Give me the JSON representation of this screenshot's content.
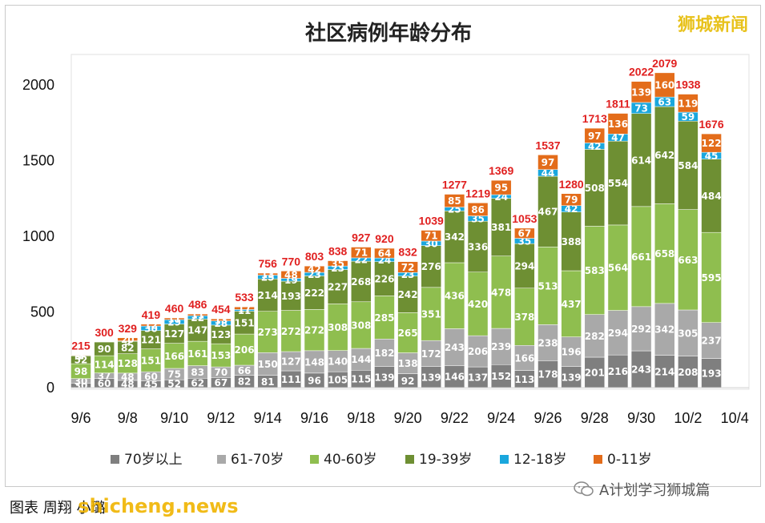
{
  "header": {
    "title": "社区病例年龄分布",
    "watermark": "狮城新闻"
  },
  "footer": {
    "caption": "图表  周翔 小璐",
    "site": "shicheng.news",
    "account": "A计划学习狮城篇",
    "account_icon": "wechat-icon"
  },
  "chart_data": {
    "type": "bar",
    "stacked": true,
    "title": "社区病例年龄分布",
    "ylim": [
      0,
      2200
    ],
    "yticks": [
      0,
      500,
      1000,
      1500,
      2000
    ],
    "xtick_labels": [
      "9/6",
      "9/8",
      "9/10",
      "9/12",
      "9/14",
      "9/16",
      "9/18",
      "9/20",
      "9/22",
      "9/24",
      "9/26",
      "9/28",
      "9/30",
      "10/2",
      "10/4"
    ],
    "grid": false,
    "legend_position": "bottom",
    "categories": [
      "9/6",
      "9/7",
      "9/8",
      "9/9",
      "9/10",
      "9/11",
      "9/12",
      "9/13",
      "9/14",
      "9/15",
      "9/16",
      "9/17",
      "9/18",
      "9/19",
      "9/20",
      "9/21",
      "9/22",
      "9/23",
      "9/24",
      "9/25",
      "9/26",
      "9/27",
      "9/28",
      "9/29",
      "9/30",
      "10/1",
      "10/2",
      "10/3"
    ],
    "totals": [
      215,
      300,
      329,
      419,
      460,
      486,
      454,
      533,
      756,
      770,
      803,
      838,
      927,
      920,
      832,
      1039,
      1277,
      1219,
      1369,
      1053,
      1537,
      1280,
      1713,
      1811,
      2022,
      2079,
      1938,
      1676
    ],
    "series": [
      {
        "name": "70岁以上",
        "color": "#7f7f7f",
        "values": [
          30,
          60,
          48,
          45,
          52,
          62,
          67,
          82,
          81,
          111,
          96,
          105,
          115,
          139,
          92,
          139,
          146,
          137,
          152,
          113,
          178,
          139,
          201,
          216,
          243,
          214,
          208,
          193
        ]
      },
      {
        "name": "61-70岁",
        "color": "#a9a9a9",
        "values": [
          30,
          37,
          48,
          60,
          75,
          83,
          70,
          66,
          150,
          127,
          148,
          140,
          144,
          182,
          138,
          172,
          243,
          206,
          239,
          166,
          238,
          196,
          282,
          294,
          292,
          342,
          305,
          237
        ]
      },
      {
        "name": "40-60岁",
        "color": "#8fbe4f",
        "values": [
          98,
          114,
          128,
          151,
          166,
          161,
          153,
          206,
          273,
          272,
          272,
          308,
          308,
          285,
          265,
          351,
          436,
          420,
          478,
          378,
          513,
          437,
          583,
          564,
          661,
          658,
          663,
          595
        ]
      },
      {
        "name": "19-39岁",
        "color": "#6e8f33",
        "values": [
          52,
          90,
          82,
          121,
          127,
          147,
          123,
          151,
          214,
          193,
          222,
          227,
          268,
          226,
          242,
          276,
          342,
          336,
          381,
          294,
          467,
          388,
          508,
          554,
          614,
          642,
          584,
          484
        ]
      },
      {
        "name": "12-18岁",
        "color": "#1aa7dd",
        "values": [
          2,
          0,
          3,
          30,
          29,
          22,
          28,
          11,
          25,
          19,
          23,
          23,
          22,
          24,
          23,
          30,
          25,
          35,
          24,
          35,
          44,
          42,
          42,
          47,
          73,
          63,
          59,
          45
        ]
      },
      {
        "name": "0-11岁",
        "color": "#e36c1a",
        "values": [
          3,
          0,
          20,
          12,
          11,
          11,
          13,
          17,
          13,
          48,
          42,
          35,
          71,
          64,
          72,
          71,
          85,
          86,
          95,
          67,
          97,
          79,
          97,
          136,
          139,
          160,
          119,
          122
        ]
      }
    ]
  }
}
